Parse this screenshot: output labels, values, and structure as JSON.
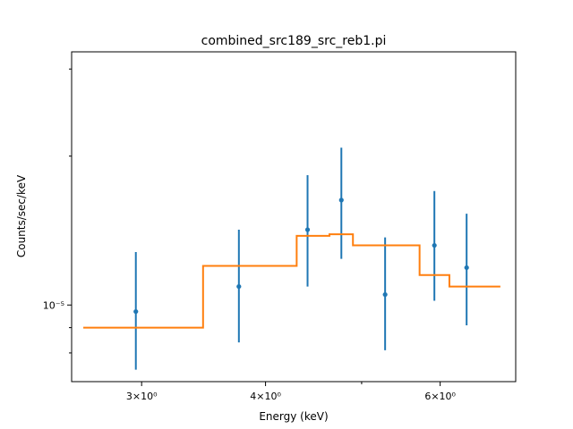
{
  "chart_data": {
    "type": "scatter",
    "title": "combined_src189_src_reb1.pi",
    "xlabel": "Energy (keV)",
    "ylabel": "Counts/sec/keV",
    "xscale": "log",
    "yscale": "log",
    "xlim": [
      2.55,
      7.15
    ],
    "ylim": [
      7e-06,
      3.25e-05
    ],
    "x_ticks": [
      {
        "value": 3,
        "label": "3×10⁰"
      },
      {
        "value": 4,
        "label": "4×10⁰"
      },
      {
        "value": 6,
        "label": "6×10⁰"
      }
    ],
    "x_minor_ticks": [
      5
    ],
    "y_ticks": [
      {
        "value": 1e-05,
        "label": "10⁻⁵"
      }
    ],
    "grid": false,
    "series": [
      {
        "kind": "errorbar",
        "color": "#1f77b4",
        "points": [
          {
            "x": 2.96,
            "y": 9.7e-06,
            "yerr_low": 7.4e-06,
            "yerr_high": 1.28e-05
          },
          {
            "x": 3.76,
            "y": 1.09e-05,
            "yerr_low": 8.4e-06,
            "yerr_high": 1.42e-05
          },
          {
            "x": 4.41,
            "y": 1.42e-05,
            "yerr_low": 1.09e-05,
            "yerr_high": 1.83e-05
          },
          {
            "x": 4.77,
            "y": 1.63e-05,
            "yerr_low": 1.24e-05,
            "yerr_high": 2.08e-05
          },
          {
            "x": 5.28,
            "y": 1.05e-05,
            "yerr_low": 8.1e-06,
            "yerr_high": 1.37e-05
          },
          {
            "x": 5.92,
            "y": 1.32e-05,
            "yerr_low": 1.02e-05,
            "yerr_high": 1.7e-05
          },
          {
            "x": 6.38,
            "y": 1.19e-05,
            "yerr_low": 9.1e-06,
            "yerr_high": 1.53e-05
          }
        ]
      },
      {
        "kind": "step",
        "color": "#ff7f0e",
        "edges": [
          2.62,
          3.46,
          4.3,
          4.64,
          4.9,
          5.72,
          6.13,
          6.9
        ],
        "values": [
          9e-06,
          1.2e-05,
          1.38e-05,
          1.39e-05,
          1.32e-05,
          1.15e-05,
          1.09e-05
        ]
      }
    ]
  }
}
